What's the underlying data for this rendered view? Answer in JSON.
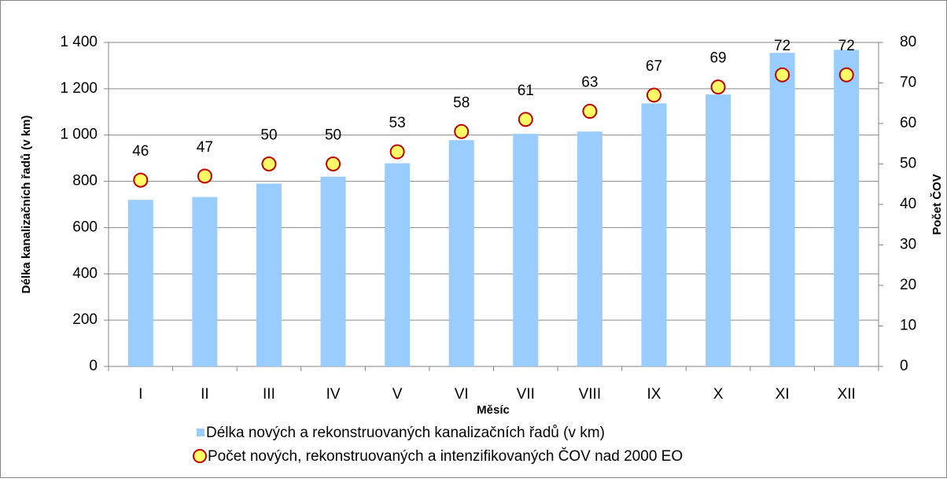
{
  "chart_data": {
    "type": "bar_scatter_dual",
    "x_label": "Měsíc",
    "y_label": "Délka kanalizačních řadů (v km)",
    "y2_label": "Počet ČOV",
    "categories": [
      "I",
      "II",
      "III",
      "IV",
      "V",
      "VI",
      "VII",
      "VIII",
      "IX",
      "X",
      "XI",
      "XII"
    ],
    "series": [
      {
        "name": "Délka nových a rekonstruovaných kanalizačních řadů (v km)",
        "type": "bar",
        "color": "#99ccff",
        "values": [
          720,
          732,
          790,
          820,
          878,
          978,
          1005,
          1015,
          1137,
          1175,
          1355,
          1368
        ]
      },
      {
        "name": "Počet nových, rekonstruovaných a intenzifikovaných ČOV nad 2000 EO",
        "type": "scatter",
        "axis": "y2",
        "color": "#ffff66",
        "edge_color": "#c00000",
        "values": [
          46,
          47,
          50,
          50,
          53,
          58,
          61,
          63,
          67,
          69,
          72,
          72
        ]
      }
    ],
    "ylim": [
      0,
      1400
    ],
    "yticks": [
      0,
      200,
      400,
      600,
      800,
      {
        "value": 1000,
        "label": "1 000"
      },
      {
        "value": 1200,
        "label": "1 200"
      },
      {
        "value": 1400,
        "label": "1 400"
      }
    ],
    "y2lim": [
      0,
      80
    ],
    "y2ticks": [
      0,
      10,
      20,
      30,
      40,
      50,
      60,
      70,
      80
    ],
    "grid": true,
    "legend": "bottom"
  }
}
